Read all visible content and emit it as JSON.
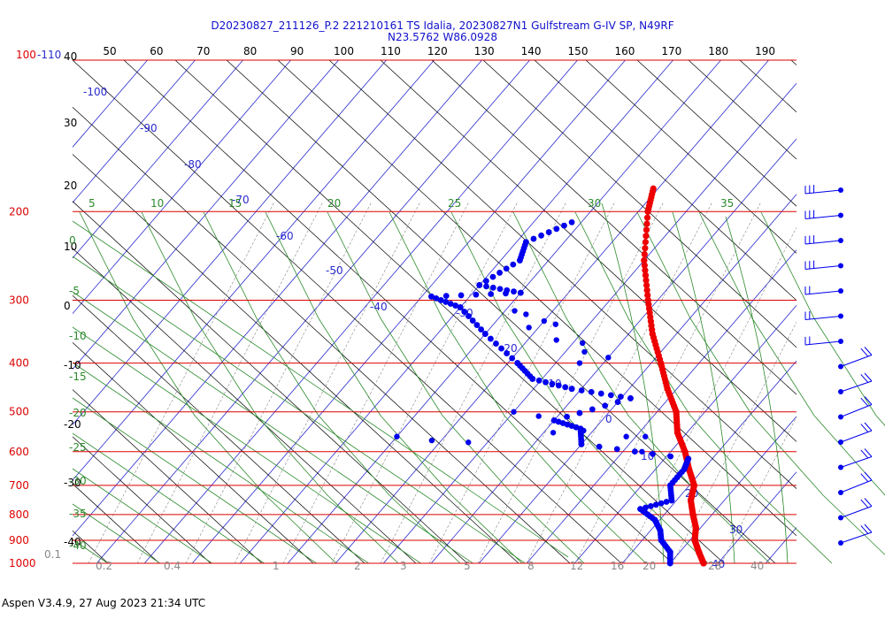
{
  "title": {
    "line1": "D20230827_211126_P.2 221210161 TS Idalia, 20230827N1 Gulfstream G-IV SP, N49RF",
    "line2": "N23.5762 W86.0928"
  },
  "footer": "Aspen V3.4.9, 27 Aug 2023  21:34 UTC",
  "chart_data": {
    "type": "skew-t",
    "pressure_levels": [
      {
        "p": 100,
        "label": "100"
      },
      {
        "p": 200,
        "label": "200"
      },
      {
        "p": 300,
        "label": "300"
      },
      {
        "p": 400,
        "label": "400"
      },
      {
        "p": 500,
        "label": "500"
      },
      {
        "p": 600,
        "label": "600"
      },
      {
        "p": 700,
        "label": "700"
      },
      {
        "p": 800,
        "label": "800"
      },
      {
        "p": 900,
        "label": "900"
      },
      {
        "p": 1000,
        "label": "1000"
      }
    ],
    "temp_top_labels": [
      "50",
      "60",
      "70",
      "80",
      "90",
      "100",
      "110",
      "120",
      "130",
      "140",
      "150",
      "160",
      "170",
      "180",
      "190"
    ],
    "temp_corner_label": "-110",
    "height_labels": [
      "40",
      "30",
      "20",
      "10",
      "0",
      "-10",
      "-20",
      "-30",
      "-40"
    ],
    "isotherm_labels": [
      "-100",
      "-90",
      "-80",
      "-70",
      "-60",
      "-50",
      "-40",
      "-30",
      "-20",
      "-10",
      "0",
      "10",
      "20",
      "30",
      "40"
    ],
    "dry_adiabat_labels": [
      "0",
      "-5",
      "-10",
      "-15",
      "-20",
      "-25",
      "-30",
      "-35",
      "-40"
    ],
    "moist_adiabat_labels": [
      "5",
      "10",
      "15",
      "20",
      "25",
      "30",
      "35"
    ],
    "mixing_ratio_labels": [
      "0.1",
      "0.2",
      "0.4",
      "1",
      "2",
      "3",
      "5",
      "8",
      "12",
      "16",
      "20",
      "28",
      "40"
    ],
    "temperature_profile": [
      {
        "p": 180,
        "t": -51
      },
      {
        "p": 200,
        "t": -48
      },
      {
        "p": 250,
        "t": -40
      },
      {
        "p": 300,
        "t": -32
      },
      {
        "p": 350,
        "t": -25
      },
      {
        "p": 400,
        "t": -18
      },
      {
        "p": 450,
        "t": -12
      },
      {
        "p": 500,
        "t": -6
      },
      {
        "p": 550,
        "t": -2
      },
      {
        "p": 600,
        "t": 3
      },
      {
        "p": 650,
        "t": 7
      },
      {
        "p": 700,
        "t": 11
      },
      {
        "p": 750,
        "t": 13
      },
      {
        "p": 800,
        "t": 16
      },
      {
        "p": 850,
        "t": 19
      },
      {
        "p": 900,
        "t": 21
      },
      {
        "p": 950,
        "t": 24
      },
      {
        "p": 1000,
        "t": 27
      }
    ],
    "dewpoint_profile": [
      {
        "p": 210,
        "t": -62
      },
      {
        "p": 230,
        "t": -68
      },
      {
        "p": 250,
        "t": -66
      },
      {
        "p": 280,
        "t": -70
      },
      {
        "p": 290,
        "t": -60
      },
      {
        "p": 295,
        "t": -78
      },
      {
        "p": 310,
        "t": -70
      },
      {
        "p": 350,
        "t": -60
      },
      {
        "p": 400,
        "t": -48
      },
      {
        "p": 430,
        "t": -42
      },
      {
        "p": 450,
        "t": -32
      },
      {
        "p": 470,
        "t": -18
      },
      {
        "p": 520,
        "t": -30
      },
      {
        "p": 540,
        "t": -23
      },
      {
        "p": 580,
        "t": -20
      },
      {
        "p": 620,
        "t": 5
      },
      {
        "p": 650,
        "t": 6
      },
      {
        "p": 700,
        "t": 6
      },
      {
        "p": 750,
        "t": 9
      },
      {
        "p": 780,
        "t": 4
      },
      {
        "p": 820,
        "t": 9
      },
      {
        "p": 860,
        "t": 12
      },
      {
        "p": 900,
        "t": 14
      },
      {
        "p": 950,
        "t": 18
      },
      {
        "p": 1000,
        "t": 20
      }
    ],
    "dewpoint_scatter": [
      {
        "p": 315,
        "t": -58
      },
      {
        "p": 320,
        "t": -55
      },
      {
        "p": 330,
        "t": -50
      },
      {
        "p": 340,
        "t": -52
      },
      {
        "p": 335,
        "t": -47
      },
      {
        "p": 360,
        "t": -44
      },
      {
        "p": 365,
        "t": -38
      },
      {
        "p": 380,
        "t": -36
      },
      {
        "p": 390,
        "t": -30
      },
      {
        "p": 400,
        "t": -35
      },
      {
        "p": 500,
        "t": -40
      },
      {
        "p": 510,
        "t": -34
      },
      {
        "p": 560,
        "t": -60
      },
      {
        "p": 570,
        "t": -52
      },
      {
        "p": 575,
        "t": -44
      },
      {
        "p": 550,
        "t": -28
      },
      {
        "p": 545,
        "t": -22
      },
      {
        "p": 560,
        "t": -12
      },
      {
        "p": 600,
        "t": -6
      },
      {
        "p": 560,
        "t": -8
      }
    ],
    "wind_barb_count": 15
  }
}
